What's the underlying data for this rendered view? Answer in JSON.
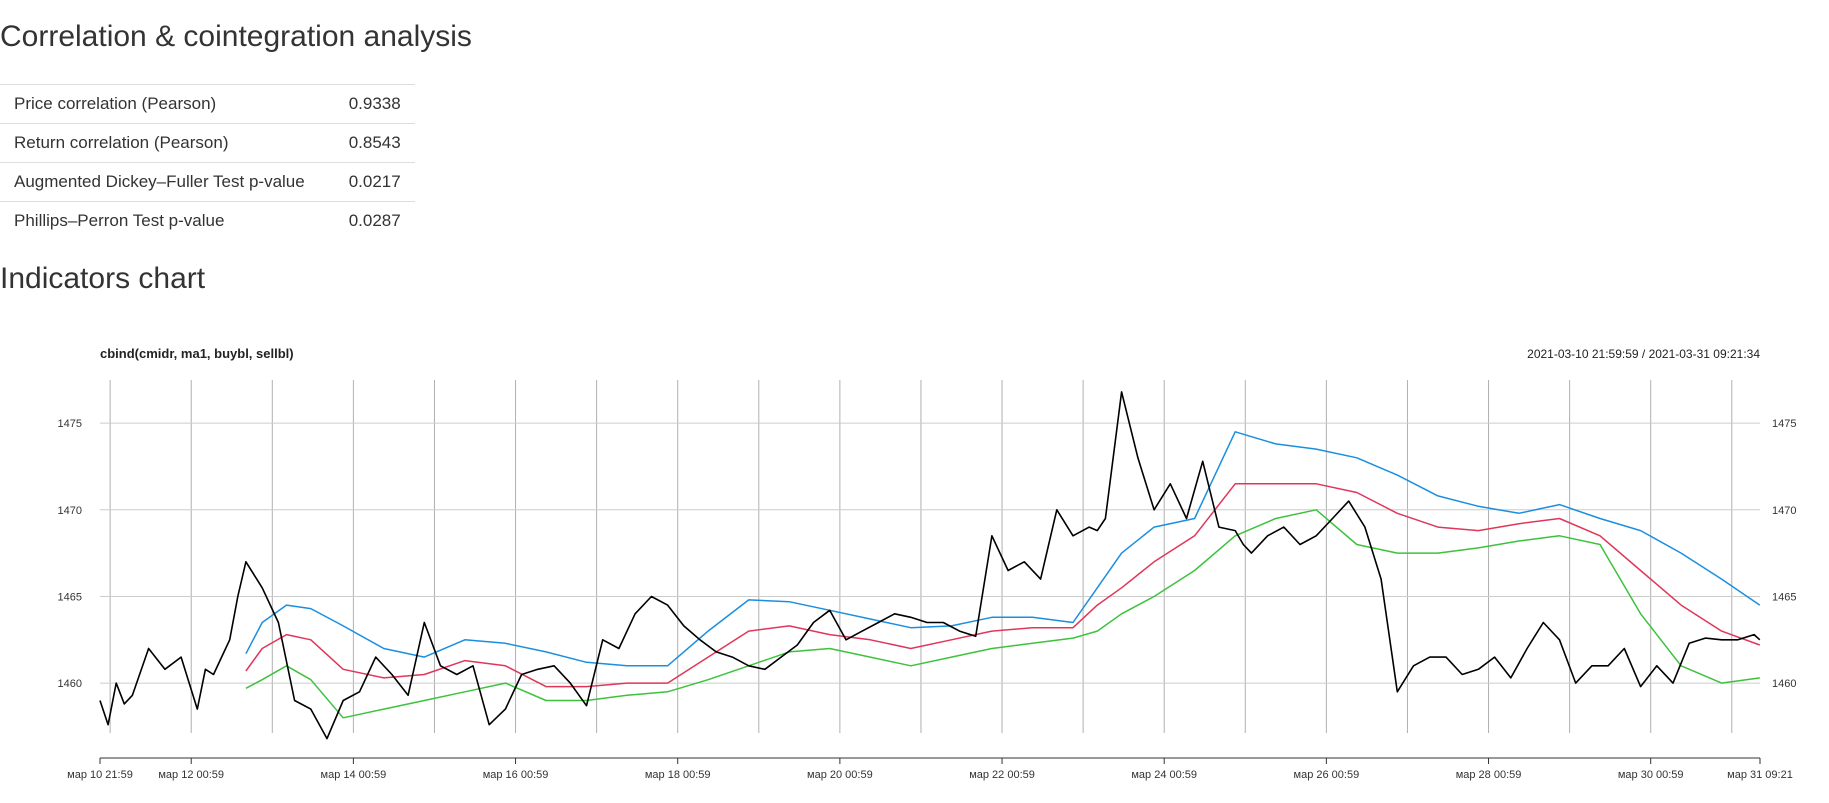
{
  "headings": {
    "correlation": "Correlation & cointegration analysis",
    "indicators": "Indicators chart"
  },
  "stats": [
    {
      "label": "Price correlation (Pearson)",
      "value": "0.9338"
    },
    {
      "label": "Return correlation (Pearson)",
      "value": "0.8543"
    },
    {
      "label": "Augmented Dickey–Fuller Test p-value",
      "value": "0.0217"
    },
    {
      "label": "Phillips–Perron Test p-value",
      "value": "0.0287"
    }
  ],
  "chart_data": {
    "type": "line",
    "title": "cbind(cmidr, ma1, buybl, sellbl)",
    "date_range": "2021-03-10 21:59:59 / 2021-03-31 09:21:34",
    "grid": true,
    "ylim": [
      1457.7,
      1477.2
    ],
    "yticks": [
      1460,
      1465,
      1470,
      1475
    ],
    "x_ticks": [
      "мар 10 21:59",
      "мар 12 00:59",
      "мар 14 00:59",
      "мар 16 00:59",
      "мар 18 00:59",
      "мар 20 00:59",
      "мар 22 00:59",
      "мар 24 00:59",
      "мар 26 00:59",
      "мар 28 00:59",
      "мар 30 00:59",
      "мар 31 09:21"
    ],
    "x_tick_days": [
      0,
      1.125,
      3.125,
      5.125,
      7.125,
      9.125,
      11.125,
      13.125,
      15.125,
      17.125,
      19.125,
      20.473
    ],
    "series": [
      {
        "color": "#000000",
        "x_days": [
          0,
          0.1,
          0.2,
          0.3,
          0.4,
          0.6,
          0.8,
          1.0,
          1.2,
          1.3,
          1.4,
          1.5,
          1.6,
          1.7,
          1.8,
          2.0,
          2.2,
          2.4,
          2.6,
          2.8,
          3.0,
          3.2,
          3.4,
          3.6,
          3.8,
          4.0,
          4.2,
          4.4,
          4.6,
          4.8,
          5.0,
          5.2,
          5.4,
          5.6,
          5.8,
          6.0,
          6.2,
          6.4,
          6.6,
          6.8,
          7.0,
          7.2,
          7.4,
          7.6,
          7.8,
          8.0,
          8.2,
          8.4,
          8.6,
          8.8,
          9.0,
          9.2,
          9.4,
          9.6,
          9.8,
          10.0,
          10.2,
          10.4,
          10.6,
          10.8,
          11.0,
          11.2,
          11.4,
          11.6,
          11.8,
          12.0,
          12.2,
          12.3,
          12.4,
          12.6,
          12.8,
          13.0,
          13.2,
          13.4,
          13.6,
          13.8,
          14.0,
          14.1,
          14.2,
          14.4,
          14.6,
          14.8,
          15.0,
          15.2,
          15.4,
          15.6,
          15.8,
          16.0,
          16.2,
          16.4,
          16.6,
          16.8,
          17.0,
          17.2,
          17.4,
          17.6,
          17.8,
          18.0,
          18.2,
          18.4,
          18.6,
          18.8,
          19.0,
          19.2,
          19.4,
          19.6,
          19.8,
          20.0,
          20.2,
          20.4,
          20.47
        ],
        "values": [
          1459.0,
          1457.6,
          1460.0,
          1458.8,
          1459.3,
          1462.0,
          1460.8,
          1461.5,
          1458.5,
          1460.8,
          1460.5,
          1461.5,
          1462.5,
          1465.0,
          1467.0,
          1465.5,
          1463.5,
          1459.0,
          1458.5,
          1456.8,
          1459.0,
          1459.5,
          1461.5,
          1460.5,
          1459.3,
          1463.5,
          1461.0,
          1460.5,
          1461.0,
          1457.6,
          1458.5,
          1460.5,
          1460.8,
          1461.0,
          1460.0,
          1458.7,
          1462.5,
          1462.0,
          1464.0,
          1465.0,
          1464.5,
          1463.3,
          1462.5,
          1461.8,
          1461.5,
          1461.0,
          1460.8,
          1461.5,
          1462.2,
          1463.5,
          1464.2,
          1462.5,
          1463.0,
          1463.5,
          1464.0,
          1463.8,
          1463.5,
          1463.5,
          1463.0,
          1462.7,
          1468.5,
          1466.5,
          1467.0,
          1466.0,
          1470.0,
          1468.5,
          1469.0,
          1468.8,
          1469.5,
          1476.8,
          1473.0,
          1470.0,
          1471.5,
          1469.5,
          1472.8,
          1469.0,
          1468.8,
          1468.0,
          1467.5,
          1468.5,
          1469.0,
          1468.0,
          1468.5,
          1469.5,
          1470.5,
          1469.0,
          1466.0,
          1459.5,
          1461.0,
          1461.5,
          1461.5,
          1460.5,
          1460.8,
          1461.5,
          1460.3,
          1462.0,
          1463.5,
          1462.5,
          1460.0,
          1461.0,
          1461.0,
          1462.0,
          1459.8,
          1461.0,
          1460.0,
          1462.3,
          1462.6,
          1462.5,
          1462.5,
          1462.8,
          1462.5
        ]
      },
      {
        "color": "#1a8fe0",
        "x_days": [
          1.8,
          2.0,
          2.3,
          2.6,
          3.0,
          3.5,
          4.0,
          4.5,
          5.0,
          5.5,
          6.0,
          6.5,
          7.0,
          7.5,
          8.0,
          8.5,
          9.0,
          9.5,
          10.0,
          10.5,
          11.0,
          11.5,
          12.0,
          12.3,
          12.6,
          13.0,
          13.5,
          14.0,
          14.5,
          15.0,
          15.5,
          16.0,
          16.5,
          17.0,
          17.5,
          18.0,
          18.5,
          19.0,
          19.5,
          20.0,
          20.47
        ],
        "values": [
          1461.7,
          1463.5,
          1464.5,
          1464.3,
          1463.3,
          1462.0,
          1461.5,
          1462.5,
          1462.3,
          1461.8,
          1461.2,
          1461.0,
          1461.0,
          1463.0,
          1464.8,
          1464.7,
          1464.2,
          1463.7,
          1463.2,
          1463.3,
          1463.8,
          1463.8,
          1463.5,
          1465.5,
          1467.5,
          1469.0,
          1469.5,
          1474.5,
          1473.8,
          1473.5,
          1473.0,
          1472.0,
          1470.8,
          1470.2,
          1469.8,
          1470.3,
          1469.5,
          1468.8,
          1467.5,
          1466.0,
          1464.5
        ]
      },
      {
        "color": "#e0365a",
        "x_days": [
          1.8,
          2.0,
          2.3,
          2.6,
          3.0,
          3.5,
          4.0,
          4.5,
          5.0,
          5.5,
          6.0,
          6.5,
          7.0,
          7.5,
          8.0,
          8.5,
          9.0,
          9.5,
          10.0,
          10.5,
          11.0,
          11.5,
          12.0,
          12.3,
          12.6,
          13.0,
          13.5,
          14.0,
          14.5,
          15.0,
          15.5,
          16.0,
          16.5,
          17.0,
          17.5,
          18.0,
          18.5,
          19.0,
          19.5,
          20.0,
          20.47
        ],
        "values": [
          1460.7,
          1462.0,
          1462.8,
          1462.5,
          1460.8,
          1460.3,
          1460.5,
          1461.3,
          1461.0,
          1459.8,
          1459.8,
          1460.0,
          1460.0,
          1461.5,
          1463.0,
          1463.3,
          1462.8,
          1462.5,
          1462.0,
          1462.5,
          1463.0,
          1463.2,
          1463.2,
          1464.5,
          1465.5,
          1467.0,
          1468.5,
          1471.5,
          1471.5,
          1471.5,
          1471.0,
          1469.8,
          1469.0,
          1468.8,
          1469.2,
          1469.5,
          1468.5,
          1466.5,
          1464.5,
          1463.0,
          1462.2
        ]
      },
      {
        "color": "#3dc23d",
        "x_days": [
          1.8,
          2.0,
          2.3,
          2.6,
          3.0,
          3.5,
          4.0,
          4.5,
          5.0,
          5.5,
          6.0,
          6.5,
          7.0,
          7.5,
          8.0,
          8.5,
          9.0,
          9.5,
          10.0,
          10.5,
          11.0,
          11.5,
          12.0,
          12.3,
          12.6,
          13.0,
          13.5,
          14.0,
          14.5,
          15.0,
          15.5,
          16.0,
          16.5,
          17.0,
          17.5,
          18.0,
          18.5,
          19.0,
          19.5,
          20.0,
          20.47
        ],
        "values": [
          1459.7,
          1460.2,
          1461.0,
          1460.2,
          1458.0,
          1458.5,
          1459.0,
          1459.5,
          1460.0,
          1459.0,
          1459.0,
          1459.3,
          1459.5,
          1460.2,
          1461.0,
          1461.8,
          1462.0,
          1461.5,
          1461.0,
          1461.5,
          1462.0,
          1462.3,
          1462.6,
          1463.0,
          1464.0,
          1465.0,
          1466.5,
          1468.5,
          1469.5,
          1470.0,
          1468.0,
          1467.5,
          1467.5,
          1467.8,
          1468.2,
          1468.5,
          1468.0,
          1464.0,
          1461.0,
          1460.0,
          1460.3
        ]
      }
    ]
  }
}
